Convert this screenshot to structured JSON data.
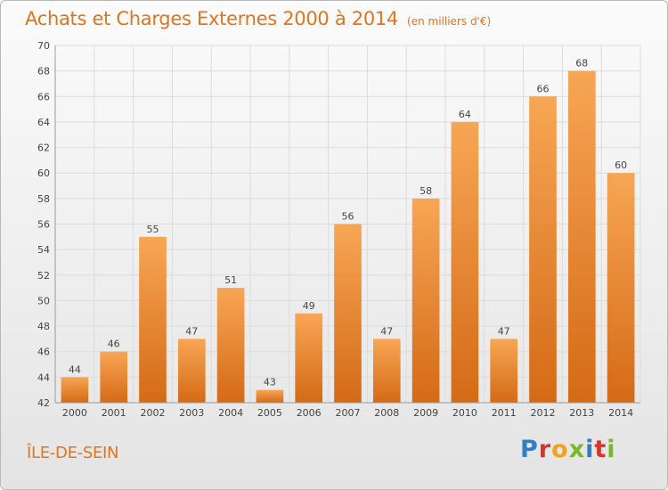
{
  "header": {
    "title": "Achats et Charges Externes 2000 à 2014",
    "subtitle": "(en milliers d'€)"
  },
  "footer": {
    "location": "ÎLE-DE-SEIN",
    "brand_letters": [
      "P",
      "r",
      "o",
      "x",
      "i",
      "t",
      "i"
    ],
    "brand_colors": [
      "#2f7fc8",
      "#d7352b",
      "#f3a21a",
      "#7ab829",
      "#2f7fc8",
      "#d7352b",
      "#7ab829"
    ]
  },
  "chart_data": {
    "type": "bar",
    "categories": [
      "2000",
      "2001",
      "2002",
      "2003",
      "2004",
      "2005",
      "2006",
      "2007",
      "2008",
      "2009",
      "2010",
      "2011",
      "2012",
      "2013",
      "2014"
    ],
    "values": [
      44,
      46,
      55,
      47,
      51,
      43,
      49,
      56,
      47,
      58,
      64,
      47,
      66,
      68,
      60
    ],
    "data_labels": [
      "44",
      "46",
      "55",
      "47",
      "51",
      "43",
      "49",
      "56",
      "47",
      "58",
      "64",
      "47",
      "66",
      "68",
      "60"
    ],
    "title": "Achats et Charges Externes 2000 à 2014",
    "subtitle": "(en milliers d'€)",
    "xlabel": "",
    "ylabel": "",
    "ylim": [
      42,
      70
    ],
    "yticks": [
      "42",
      "44",
      "46",
      "48",
      "50",
      "52",
      "54",
      "56",
      "58",
      "60",
      "62",
      "64",
      "66",
      "68",
      "70"
    ],
    "grid": true,
    "bar_color_top": "#f7a655",
    "bar_color_bottom": "#d46a16"
  }
}
